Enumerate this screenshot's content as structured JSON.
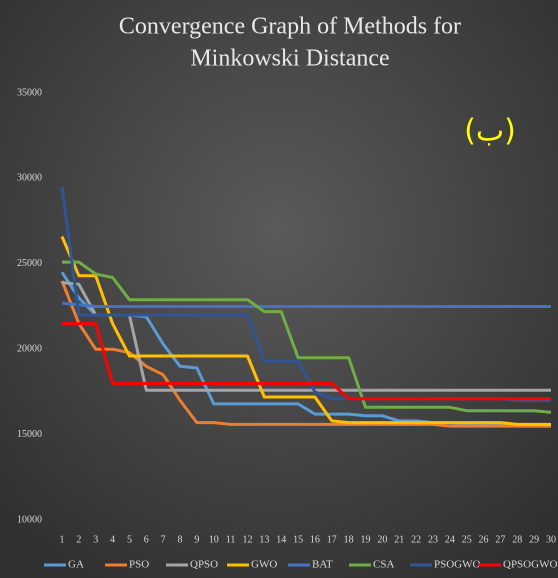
{
  "chart_data": {
    "type": "line",
    "title": [
      "Convergence Graph of Methods for",
      "Minkowski Distance"
    ],
    "annotation": "(ب)",
    "categories": [
      "1",
      "2",
      "3",
      "4",
      "5",
      "6",
      "7",
      "8",
      "9",
      "10",
      "11",
      "12",
      "13",
      "14",
      "15",
      "16",
      "17",
      "18",
      "19",
      "20",
      "21",
      "22",
      "23",
      "24",
      "25",
      "26",
      "27",
      "28",
      "29",
      "30"
    ],
    "ylim": [
      10000,
      35000
    ],
    "yticks": [
      10000,
      15000,
      20000,
      25000,
      30000,
      35000
    ],
    "grid": false,
    "legend": "bottom",
    "series": [
      {
        "name": "GA",
        "color": "#5b9bd5",
        "values": [
          24500,
          23000,
          22000,
          22000,
          22000,
          21900,
          20300,
          19000,
          18900,
          16800,
          16800,
          16800,
          16800,
          16800,
          16800,
          16200,
          16200,
          16200,
          16100,
          16100,
          15800,
          15800,
          15700,
          15700,
          15600,
          15600,
          15600,
          15500,
          15500,
          15500
        ]
      },
      {
        "name": "PSO",
        "color": "#ed7d31",
        "values": [
          24000,
          21500,
          20000,
          20000,
          19800,
          19000,
          18500,
          17000,
          15700,
          15700,
          15600,
          15600,
          15600,
          15600,
          15600,
          15600,
          15600,
          15600,
          15600,
          15600,
          15600,
          15600,
          15600,
          15500,
          15500,
          15500,
          15500,
          15500,
          15500,
          15500
        ]
      },
      {
        "name": "QPSO",
        "color": "#a5a5a5",
        "values": [
          23900,
          23800,
          22000,
          22000,
          22000,
          17600,
          17600,
          17600,
          17600,
          17600,
          17600,
          17600,
          17600,
          17600,
          17600,
          17600,
          17600,
          17600,
          17600,
          17600,
          17600,
          17600,
          17600,
          17600,
          17600,
          17600,
          17600,
          17600,
          17600,
          17600
        ]
      },
      {
        "name": "GWO",
        "color": "#ffc000",
        "values": [
          26600,
          24300,
          24300,
          21500,
          19600,
          19600,
          19600,
          19600,
          19600,
          19600,
          19600,
          19600,
          17200,
          17200,
          17200,
          17200,
          15800,
          15700,
          15700,
          15700,
          15700,
          15700,
          15700,
          15700,
          15700,
          15700,
          15700,
          15600,
          15600,
          15600
        ]
      },
      {
        "name": "BAT",
        "color": "#4472c4",
        "values": [
          22700,
          22600,
          22500,
          22500,
          22500,
          22500,
          22500,
          22500,
          22500,
          22500,
          22500,
          22500,
          22500,
          22500,
          22500,
          22500,
          22500,
          22500,
          22500,
          22500,
          22500,
          22500,
          22500,
          22500,
          22500,
          22500,
          22500,
          22500,
          22500,
          22500
        ]
      },
      {
        "name": "CSA",
        "color": "#70ad47",
        "values": [
          25100,
          25100,
          24400,
          24200,
          22900,
          22900,
          22900,
          22900,
          22900,
          22900,
          22900,
          22900,
          22200,
          22200,
          19500,
          19500,
          19500,
          19500,
          16600,
          16600,
          16600,
          16600,
          16600,
          16600,
          16400,
          16400,
          16400,
          16400,
          16400,
          16300
        ]
      },
      {
        "name": "PSOGWO",
        "color": "#2f5597",
        "values": [
          29500,
          22000,
          22000,
          22000,
          22000,
          22000,
          22000,
          22000,
          22000,
          22000,
          22000,
          22000,
          19300,
          19300,
          19300,
          17500,
          17100,
          17100,
          17100,
          17100,
          17100,
          17100,
          17100,
          17100,
          17100,
          17100,
          17100,
          17000,
          17000,
          17000
        ]
      },
      {
        "name": "QPSOGWO",
        "color": "#ff0000",
        "values": [
          21500,
          21500,
          21500,
          18000,
          18000,
          18000,
          18000,
          18000,
          18000,
          18000,
          18000,
          18000,
          18000,
          18000,
          18000,
          18000,
          18000,
          17100,
          17100,
          17100,
          17100,
          17100,
          17100,
          17100,
          17100,
          17100,
          17100,
          17100,
          17100,
          17100
        ]
      }
    ]
  }
}
